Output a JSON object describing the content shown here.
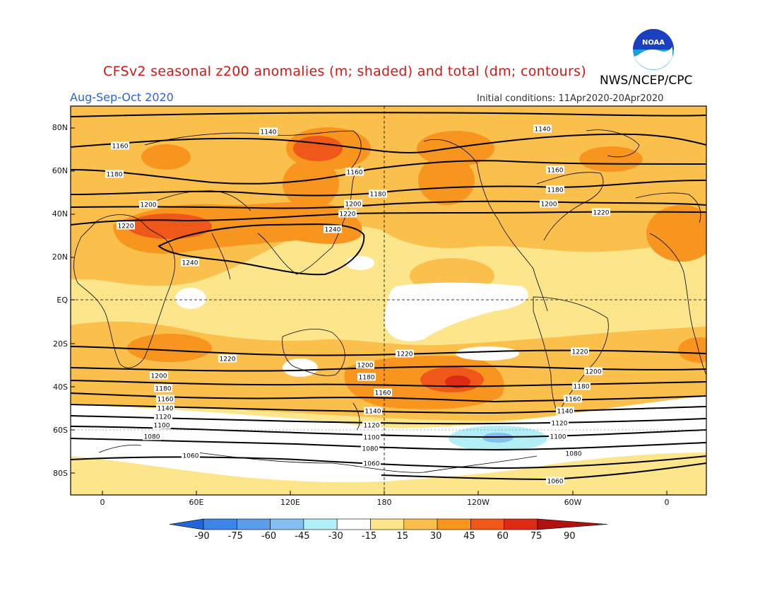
{
  "title": "CFSv2 seasonal z200 anomalies (m; shaded) and total (dm; contours)",
  "season": "Aug-Sep-Oct 2020",
  "initial_conditions": "Initial conditions: 11Apr2020-20Apr2020",
  "agency": "NWS/NCEP/CPC",
  "logo_text": "NOAA",
  "lat_labels": [
    "80N",
    "60N",
    "40N",
    "20N",
    "EQ",
    "20S",
    "40S",
    "60S",
    "80S"
  ],
  "lon_labels": [
    "0",
    "60E",
    "120E",
    "180",
    "120W",
    "60W",
    "0"
  ],
  "colorbar": {
    "labels": [
      "-90",
      "-75",
      "-60",
      "-45",
      "-30",
      "-15",
      "15",
      "30",
      "45",
      "60",
      "75",
      "90"
    ],
    "colors": [
      "#2165d8",
      "#3d85e4",
      "#5b9de8",
      "#85bff0",
      "#b2eef5",
      "#ffffff",
      "#fde58c",
      "#fbbf4b",
      "#f7951f",
      "#f0581a",
      "#dd2a14",
      "#b01210"
    ]
  },
  "contour_labels": [
    "1060",
    "1080",
    "1100",
    "1120",
    "1140",
    "1160",
    "1180",
    "1200",
    "1220",
    "1240"
  ]
}
